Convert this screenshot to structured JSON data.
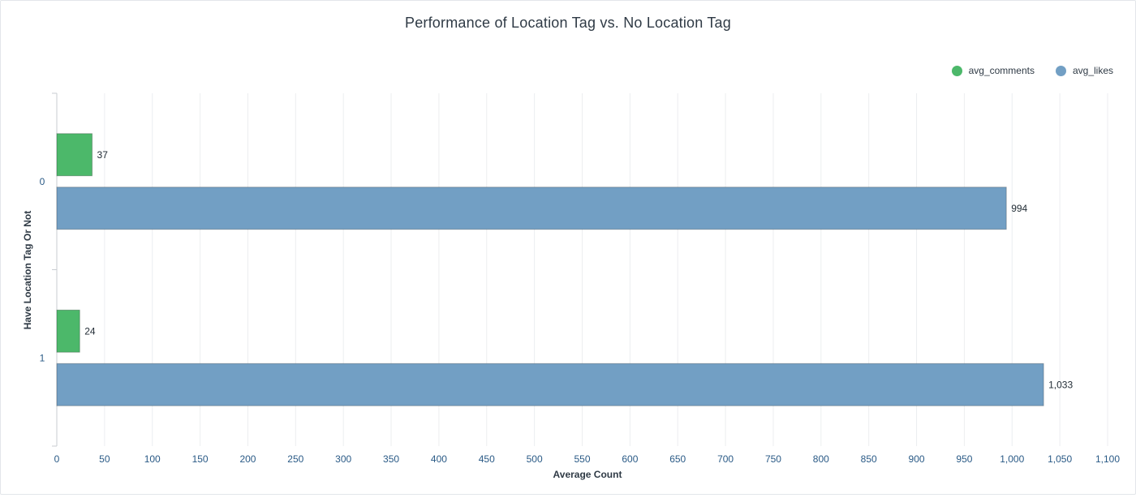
{
  "chart_data": {
    "type": "bar",
    "orientation": "horizontal",
    "title": "Performance of Location Tag vs. No Location Tag",
    "xlabel": "Average Count",
    "ylabel": "Have Location Tag Or Not",
    "categories": [
      "0",
      "1"
    ],
    "series": [
      {
        "name": "avg_comments",
        "color": "#4cb86a",
        "values": [
          37,
          24
        ],
        "labels": [
          "37",
          "24"
        ]
      },
      {
        "name": "avg_likes",
        "color": "#729fc4",
        "values": [
          994,
          1033
        ],
        "labels": [
          "994",
          "1,033"
        ]
      }
    ],
    "xlim": [
      0,
      1100
    ],
    "xticks": [
      0,
      50,
      100,
      150,
      200,
      250,
      300,
      350,
      400,
      450,
      500,
      550,
      600,
      650,
      700,
      750,
      800,
      850,
      900,
      950,
      1000,
      1050,
      1100
    ],
    "xtick_labels": [
      "0",
      "50",
      "100",
      "150",
      "200",
      "250",
      "300",
      "350",
      "400",
      "450",
      "500",
      "550",
      "600",
      "650",
      "700",
      "750",
      "800",
      "850",
      "900",
      "950",
      "1,000",
      "1,050",
      "1,100"
    ],
    "grid": true,
    "legend": "top-right"
  }
}
